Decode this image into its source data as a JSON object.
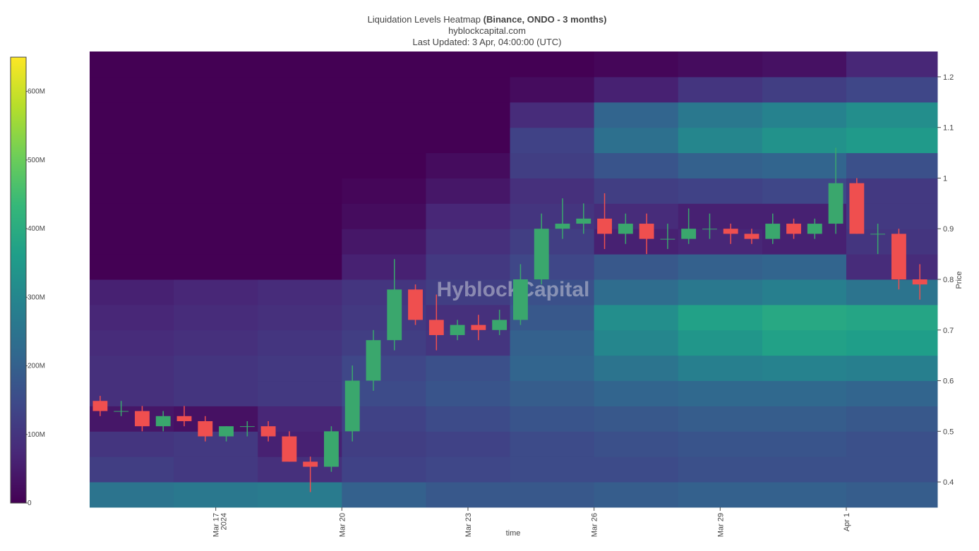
{
  "chart_data": [
    {
      "type": "heatmap",
      "title": "Liquidation Levels Heatmap",
      "title_bold": "(Binance, ONDO - 3 months)",
      "subtitle": "hyblockcapital.com",
      "updated": "Last Updated: 3 Apr, 04:00:00 (UTC)",
      "watermark": "HyblockCapital",
      "x_label": "time",
      "y_label": "Price",
      "xlim": [
        "2024-03-14 00:00",
        "2024-04-03 04:00"
      ],
      "xticks": [
        {
          "value": "2024-03-17 00:00",
          "label": "Mar 17"
        },
        {
          "value": "2024-03-20 00:00",
          "label": "Mar 20"
        },
        {
          "value": "2024-03-23 00:00",
          "label": "Mar 23"
        },
        {
          "value": "2024-03-26 00:00",
          "label": "Mar 26"
        },
        {
          "value": "2024-03-29 00:00",
          "label": "Mar 29"
        },
        {
          "value": "2024-04-01 00:00",
          "label": "Apr 1"
        }
      ],
      "x_year_label": "2024",
      "ylim": [
        0.35,
        1.25
      ],
      "yticks": [
        0.4,
        0.5,
        0.6,
        0.7,
        0.8,
        0.9,
        1,
        1.1,
        1.2
      ],
      "zlim": [
        0,
        650
      ],
      "zticks": [
        0,
        {
          "value": 100,
          "label": "100M"
        },
        {
          "value": 200,
          "label": "200M"
        },
        {
          "value": 300,
          "label": "300M"
        },
        {
          "value": 400,
          "label": "400M"
        },
        {
          "value": 500,
          "label": "500M"
        },
        {
          "value": 600,
          "label": "600M"
        }
      ],
      "colorscale": [
        "#440154",
        "#482878",
        "#3e4989",
        "#31688e",
        "#26828e",
        "#1f9e89",
        "#35b779",
        "#6ece58",
        "#b5de2b",
        "#fde725"
      ],
      "x_bins": [
        "2024-03-14 00:00",
        "2024-03-16 00:00",
        "2024-03-18 00:00",
        "2024-03-20 00:00",
        "2024-03-22 00:00",
        "2024-03-24 00:00",
        "2024-03-26 00:00",
        "2024-03-28 00:00",
        "2024-03-30 00:00",
        "2024-04-01 00:00",
        "2024-04-03 04:00"
      ],
      "y_bins": [
        0.35,
        0.4,
        0.45,
        0.5,
        0.55,
        0.6,
        0.65,
        0.7,
        0.75,
        0.8,
        0.85,
        0.9,
        0.95,
        1,
        1.05,
        1.1,
        1.15,
        1.2,
        1.25
      ],
      "z": [
        [
          250,
          260,
          270,
          200,
          180,
          180,
          190,
          200,
          200,
          190
        ],
        [
          120,
          110,
          90,
          130,
          140,
          150,
          150,
          160,
          160,
          160
        ],
        [
          100,
          110,
          60,
          120,
          130,
          150,
          160,
          170,
          170,
          160
        ],
        [
          40,
          30,
          70,
          130,
          150,
          170,
          180,
          190,
          190,
          180
        ],
        [
          90,
          100,
          110,
          150,
          170,
          190,
          210,
          220,
          220,
          210
        ],
        [
          90,
          100,
          110,
          140,
          160,
          210,
          250,
          280,
          290,
          280
        ],
        [
          80,
          90,
          100,
          120,
          100,
          200,
          300,
          340,
          370,
          360
        ],
        [
          70,
          80,
          90,
          110,
          90,
          180,
          320,
          370,
          390,
          380
        ],
        [
          60,
          70,
          80,
          100,
          120,
          160,
          230,
          260,
          280,
          250
        ],
        [
          0,
          0,
          0,
          60,
          110,
          140,
          180,
          200,
          210,
          80
        ],
        [
          0,
          0,
          0,
          40,
          90,
          120,
          60,
          70,
          60,
          100
        ],
        [
          0,
          0,
          0,
          20,
          70,
          100,
          80,
          60,
          60,
          110
        ],
        [
          0,
          0,
          0,
          10,
          40,
          90,
          120,
          130,
          140,
          110
        ],
        [
          0,
          0,
          0,
          0,
          20,
          120,
          170,
          200,
          210,
          160
        ],
        [
          0,
          0,
          0,
          0,
          0,
          130,
          240,
          300,
          330,
          350
        ],
        [
          0,
          0,
          0,
          0,
          0,
          80,
          210,
          260,
          290,
          320
        ],
        [
          0,
          0,
          0,
          0,
          0,
          20,
          60,
          100,
          120,
          140
        ],
        [
          0,
          0,
          0,
          0,
          0,
          0,
          10,
          20,
          30,
          70
        ]
      ]
    },
    {
      "type": "candlestick",
      "up_color": "#3aa76d",
      "down_color": "#ef4f4f",
      "x": [
        "2024-03-14 00:00",
        "2024-03-14 12:00",
        "2024-03-15 00:00",
        "2024-03-15 12:00",
        "2024-03-16 00:00",
        "2024-03-16 12:00",
        "2024-03-17 00:00",
        "2024-03-17 12:00",
        "2024-03-18 00:00",
        "2024-03-18 12:00",
        "2024-03-19 00:00",
        "2024-03-19 12:00",
        "2024-03-20 00:00",
        "2024-03-20 12:00",
        "2024-03-21 00:00",
        "2024-03-21 12:00",
        "2024-03-22 00:00",
        "2024-03-22 12:00",
        "2024-03-23 00:00",
        "2024-03-23 12:00",
        "2024-03-24 00:00",
        "2024-03-24 12:00",
        "2024-03-25 00:00",
        "2024-03-25 12:00",
        "2024-03-26 00:00",
        "2024-03-26 12:00",
        "2024-03-27 00:00",
        "2024-03-27 12:00",
        "2024-03-28 00:00",
        "2024-03-28 12:00",
        "2024-03-29 00:00",
        "2024-03-29 12:00",
        "2024-03-30 00:00",
        "2024-03-30 12:00",
        "2024-03-31 00:00",
        "2024-03-31 12:00",
        "2024-04-01 00:00",
        "2024-04-01 12:00",
        "2024-04-02 00:00",
        "2024-04-02 12:00"
      ],
      "open": [
        0.56,
        0.54,
        0.54,
        0.51,
        0.53,
        0.52,
        0.49,
        0.51,
        0.51,
        0.49,
        0.44,
        0.43,
        0.5,
        0.6,
        0.68,
        0.78,
        0.72,
        0.69,
        0.71,
        0.7,
        0.72,
        0.8,
        0.9,
        0.91,
        0.92,
        0.89,
        0.91,
        0.88,
        0.88,
        0.9,
        0.9,
        0.89,
        0.88,
        0.91,
        0.89,
        0.91,
        0.99,
        0.89,
        0.89,
        0.8
      ],
      "high": [
        0.57,
        0.56,
        0.55,
        0.54,
        0.55,
        0.53,
        0.51,
        0.52,
        0.52,
        0.5,
        0.45,
        0.51,
        0.63,
        0.7,
        0.84,
        0.79,
        0.77,
        0.72,
        0.73,
        0.74,
        0.83,
        0.93,
        0.96,
        0.95,
        0.97,
        0.93,
        0.93,
        0.91,
        0.94,
        0.93,
        0.91,
        0.9,
        0.93,
        0.92,
        0.92,
        1.06,
        1.0,
        0.91,
        0.9,
        0.83
      ],
      "low": [
        0.53,
        0.53,
        0.5,
        0.5,
        0.51,
        0.48,
        0.48,
        0.49,
        0.48,
        0.44,
        0.38,
        0.42,
        0.48,
        0.58,
        0.66,
        0.71,
        0.66,
        0.68,
        0.68,
        0.69,
        0.71,
        0.79,
        0.88,
        0.89,
        0.86,
        0.87,
        0.85,
        0.86,
        0.87,
        0.88,
        0.87,
        0.87,
        0.87,
        0.88,
        0.88,
        0.89,
        0.89,
        0.85,
        0.78,
        0.76
      ],
      "close": [
        0.54,
        0.54,
        0.51,
        0.53,
        0.52,
        0.49,
        0.51,
        0.51,
        0.49,
        0.44,
        0.43,
        0.5,
        0.6,
        0.68,
        0.78,
        0.72,
        0.69,
        0.71,
        0.7,
        0.72,
        0.8,
        0.9,
        0.91,
        0.92,
        0.89,
        0.91,
        0.88,
        0.88,
        0.9,
        0.9,
        0.89,
        0.88,
        0.91,
        0.89,
        0.91,
        0.99,
        0.89,
        0.89,
        0.8,
        0.79
      ]
    }
  ]
}
